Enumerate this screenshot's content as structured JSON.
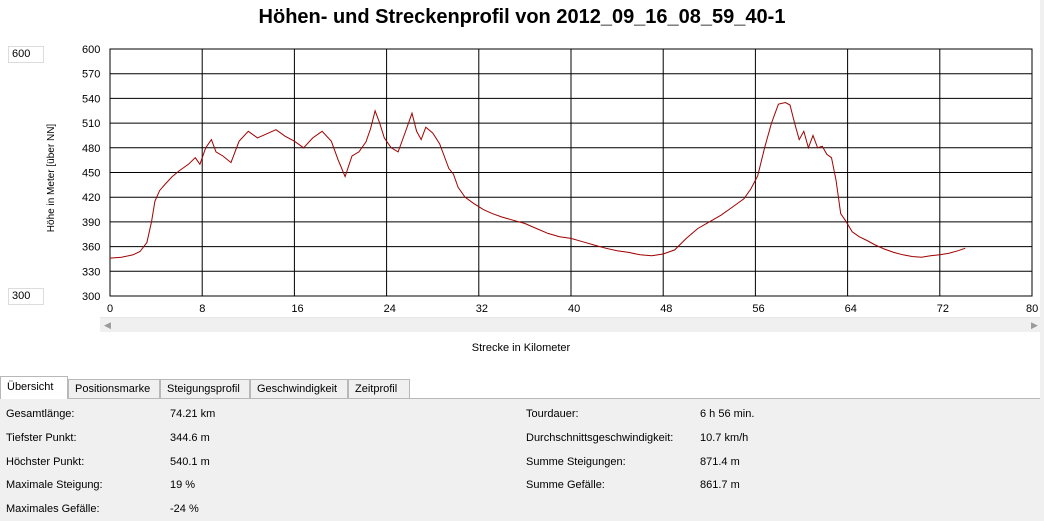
{
  "title": "Höhen- und Streckenprofil von 2012_09_16_08_59_40-1",
  "range": {
    "max": "600",
    "min": "300"
  },
  "colors": {
    "line": "#a00000",
    "grid": "#000000"
  },
  "chart_data": {
    "type": "line",
    "title": "Höhen- und Streckenprofil von 2012_09_16_08_59_40-1",
    "xlabel": "Strecke in Kilometer",
    "ylabel": "Höhe in Meter [über NN]",
    "xlim": [
      0,
      80
    ],
    "ylim": [
      300,
      600
    ],
    "xticks": [
      "0",
      "8",
      "16",
      "24",
      "32",
      "40",
      "48",
      "56",
      "64",
      "72",
      "80"
    ],
    "yticks": [
      "300",
      "330",
      "360",
      "390",
      "420",
      "450",
      "480",
      "510",
      "540",
      "570",
      "600"
    ],
    "grid": true,
    "series": [
      {
        "x": [
          0,
          1,
          2,
          2.6,
          3.2,
          3.6,
          3.9,
          4.3,
          4.8,
          5.4,
          6,
          6.8,
          7.4,
          7.8,
          8.3,
          8.8,
          9.2,
          9.8,
          10.5,
          11.2,
          12,
          12.8,
          13.6,
          14.4,
          15.2,
          16,
          16.8,
          17.6,
          18.4,
          19.2,
          19.8,
          20.4,
          21,
          21.6,
          22.2,
          22.6,
          23,
          23.4,
          23.8,
          24.4,
          25,
          25.6,
          26.2,
          26.6,
          27,
          27.4,
          28,
          28.6,
          29,
          29.4,
          29.8,
          30.2,
          30.8,
          31.6,
          32.4,
          33.2,
          34,
          35,
          36,
          37,
          38,
          39,
          40,
          41,
          42,
          43,
          44,
          45,
          46,
          47,
          48,
          49,
          50,
          51,
          52,
          53,
          54,
          55,
          55.6,
          56.2,
          56.8,
          57.4,
          58,
          58.6,
          59,
          59.4,
          59.8,
          60.2,
          60.6,
          61,
          61.4,
          61.8,
          62.2,
          62.6,
          63,
          63.4,
          63.8,
          64.4,
          65,
          65.6,
          66.4,
          67.2,
          68,
          68.8,
          69.6,
          70.4,
          71.2,
          72,
          72.8,
          73.6,
          74.21
        ],
        "values": [
          346,
          347,
          350,
          354,
          365,
          390,
          415,
          428,
          436,
          445,
          452,
          460,
          468,
          460,
          480,
          490,
          475,
          470,
          462,
          488,
          500,
          492,
          497,
          502,
          494,
          488,
          480,
          492,
          500,
          488,
          465,
          445,
          470,
          475,
          487,
          503,
          525,
          510,
          492,
          480,
          475,
          498,
          522,
          500,
          490,
          505,
          498,
          485,
          470,
          455,
          448,
          432,
          420,
          412,
          405,
          400,
          396,
          392,
          388,
          382,
          376,
          372,
          370,
          366,
          362,
          358,
          355,
          353,
          350,
          349,
          351,
          356,
          370,
          382,
          390,
          398,
          408,
          418,
          430,
          446,
          480,
          510,
          533,
          535,
          532,
          510,
          490,
          500,
          480,
          495,
          480,
          482,
          472,
          468,
          440,
          400,
          392,
          378,
          372,
          368,
          362,
          357,
          353,
          350,
          348,
          347,
          349,
          350,
          352,
          355,
          358
        ]
      }
    ]
  },
  "tabs": [
    {
      "label": "Übersicht"
    },
    {
      "label": "Positionsmarke"
    },
    {
      "label": "Steigungsprofil"
    },
    {
      "label": "Geschwindigkeit"
    },
    {
      "label": "Zeitprofil"
    }
  ],
  "summary": {
    "left": [
      {
        "label": "Gesamtlänge:",
        "value": "74.21 km"
      },
      {
        "label": "Tiefster Punkt:",
        "value": "344.6 m"
      },
      {
        "label": "Höchster Punkt:",
        "value": "540.1 m"
      },
      {
        "label": "Maximale Steigung:",
        "value": "19 %"
      },
      {
        "label": "Maximales Gefälle:",
        "value": "-24 %"
      }
    ],
    "right": [
      {
        "label": "Tourdauer:",
        "value": "6 h 56 min."
      },
      {
        "label": "Durchschnittsgeschwindigkeit:",
        "value": "10.7 km/h"
      },
      {
        "label": "Summe Steigungen:",
        "value": "871.4 m"
      },
      {
        "label": "Summe Gefälle:",
        "value": "861.7 m"
      }
    ]
  }
}
